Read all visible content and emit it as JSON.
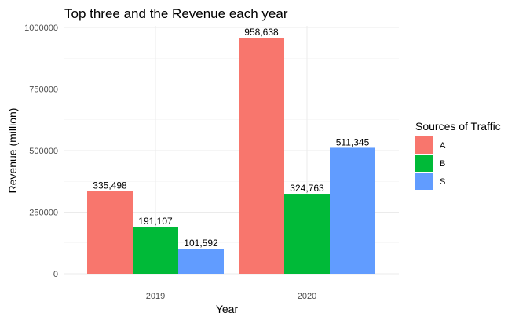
{
  "chart_data": {
    "type": "bar",
    "title": "Top three and the Revenue each year",
    "xlabel": "Year",
    "ylabel": "Revenue (million)",
    "categories": [
      "2019",
      "2020"
    ],
    "ylim": [
      0,
      1000000
    ],
    "yticks": [
      0,
      250000,
      500000,
      750000,
      1000000
    ],
    "ytick_labels": [
      "0",
      "250000",
      "500000",
      "750000",
      "1000000"
    ],
    "grid": true,
    "legend": {
      "title": "Sources of Traffic",
      "position": "right"
    },
    "series": [
      {
        "name": "A",
        "color": "#F8766D",
        "values": [
          335498,
          958638
        ],
        "labels": [
          "335,498",
          "958,638"
        ]
      },
      {
        "name": "B",
        "color": "#00BA38",
        "values": [
          191107,
          324763
        ],
        "labels": [
          "191,107",
          "324,763"
        ]
      },
      {
        "name": "S",
        "color": "#619CFF",
        "values": [
          101592,
          511345
        ],
        "labels": [
          "101,592",
          "511,345"
        ]
      }
    ]
  }
}
